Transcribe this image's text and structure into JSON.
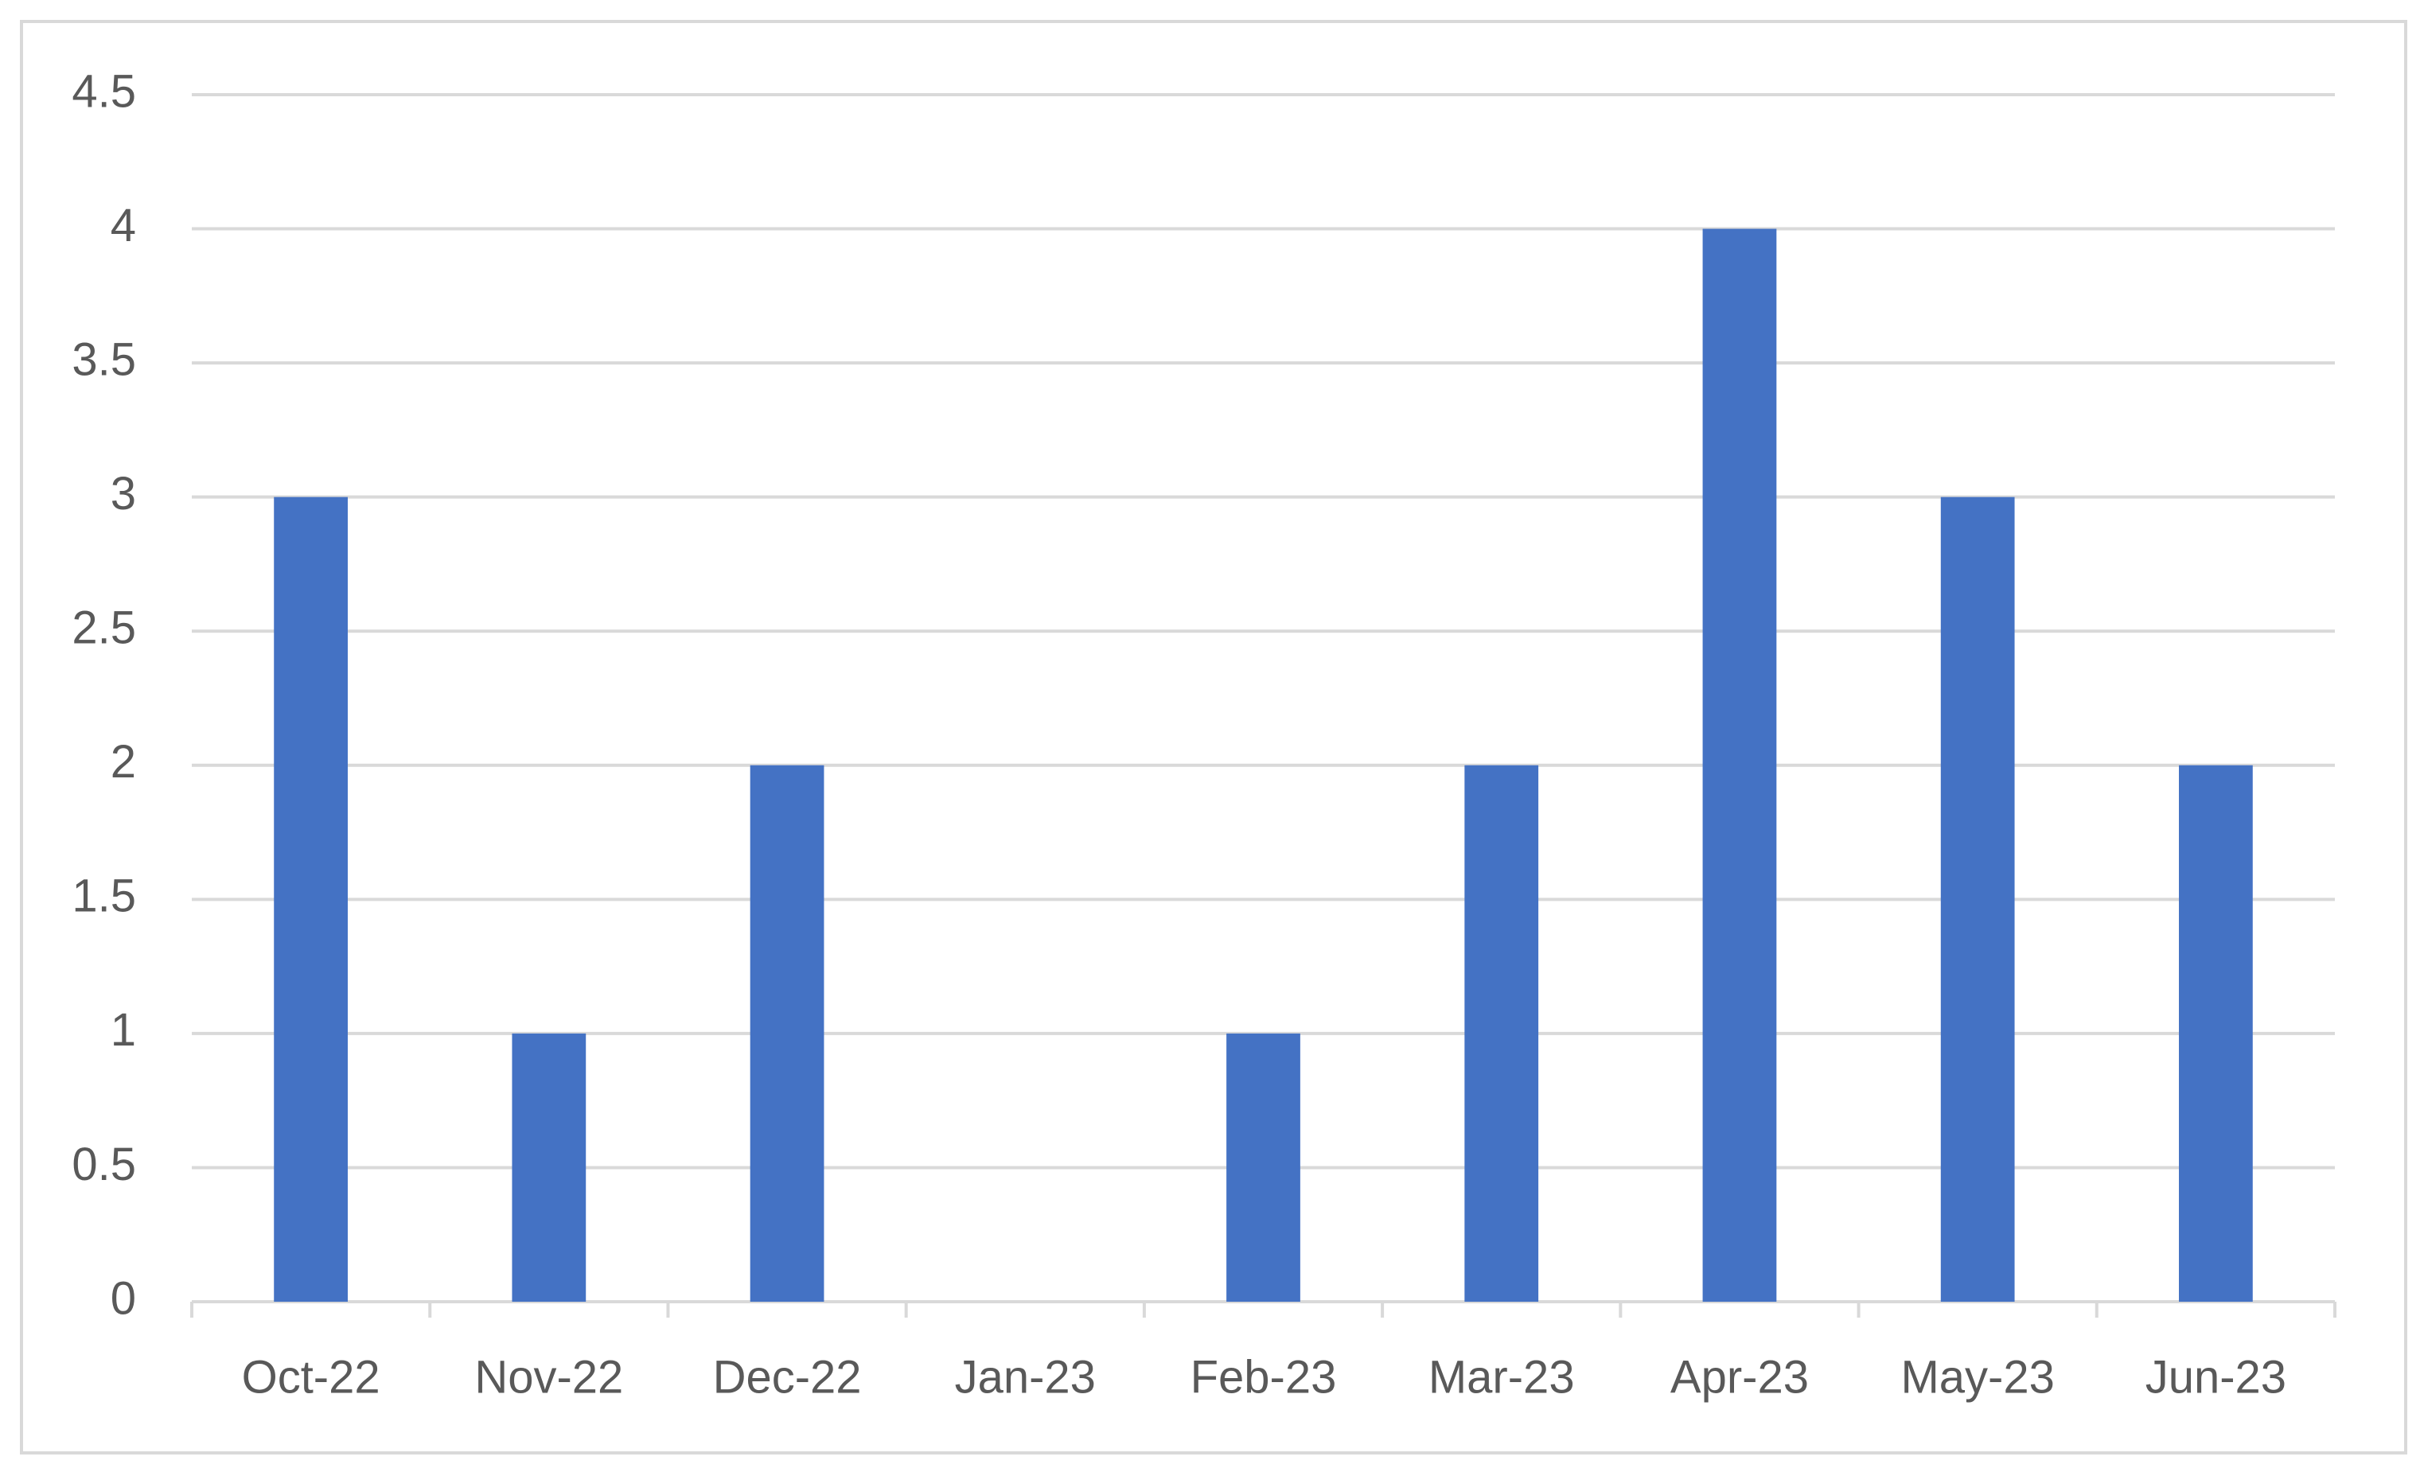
{
  "chart_data": {
    "type": "bar",
    "categories": [
      "Oct-22",
      "Nov-22",
      "Dec-22",
      "Jan-23",
      "Feb-23",
      "Mar-23",
      "Apr-23",
      "May-23",
      "Jun-23"
    ],
    "values": [
      3,
      1,
      2,
      0,
      1,
      2,
      4,
      3,
      2
    ],
    "color": "#4472c4",
    "ylim": [
      0,
      4.5
    ],
    "yticks": [
      0,
      0.5,
      1,
      1.5,
      2,
      2.5,
      3,
      3.5,
      4,
      4.5
    ],
    "grid": true
  }
}
